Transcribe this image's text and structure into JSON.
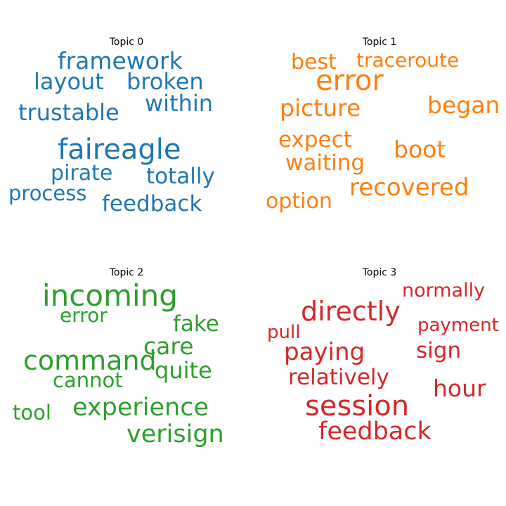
{
  "topics": [
    {
      "title": "Topic 0",
      "color": "#1f77b4",
      "words": [
        "framework",
        "layout",
        "broken",
        "within",
        "trustable",
        "faireagle",
        "pirate",
        "totally",
        "process",
        "feedback"
      ]
    },
    {
      "title": "Topic 1",
      "color": "#ff7f0e",
      "words": [
        "best",
        "traceroute",
        "error",
        "picture",
        "began",
        "expect",
        "boot",
        "waiting",
        "recovered",
        "option"
      ]
    },
    {
      "title": "Topic 2",
      "color": "#2ca02c",
      "words": [
        "incoming",
        "error",
        "fake",
        "care",
        "command",
        "quite",
        "cannot",
        "experience",
        "tool",
        "verisign"
      ]
    },
    {
      "title": "Topic 3",
      "color": "#d62728",
      "words": [
        "normally",
        "directly",
        "pull",
        "payment",
        "paying",
        "sign",
        "relatively",
        "hour",
        "session",
        "feedback"
      ]
    }
  ]
}
